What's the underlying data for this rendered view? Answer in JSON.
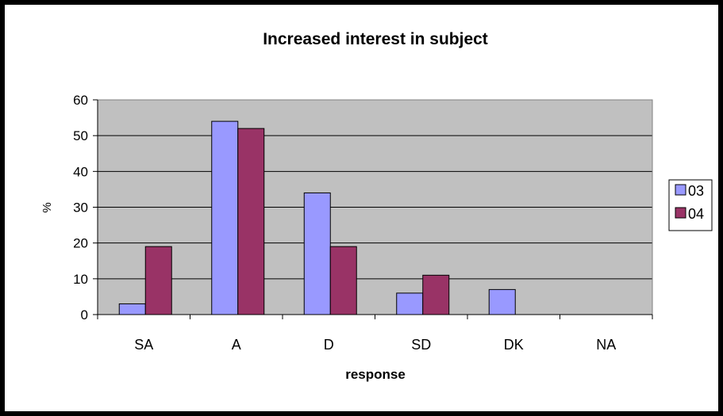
{
  "chart_data": {
    "type": "bar",
    "title": "Increased interest in subject",
    "xlabel": "response",
    "ylabel": "%",
    "categories": [
      "SA",
      "A",
      "D",
      "SD",
      "DK",
      "NA"
    ],
    "series": [
      {
        "name": "03",
        "values": [
          3,
          54,
          34,
          6,
          7,
          0
        ],
        "color": "#9999FF"
      },
      {
        "name": "04",
        "values": [
          19,
          52,
          19,
          11,
          0,
          0
        ],
        "color": "#993366"
      }
    ],
    "ylim": [
      0,
      60
    ],
    "yticks": [
      "0",
      "10",
      "20",
      "30",
      "40",
      "50",
      "60"
    ],
    "grid": true,
    "plot_background": "#C0C0C0",
    "legend": "right"
  }
}
